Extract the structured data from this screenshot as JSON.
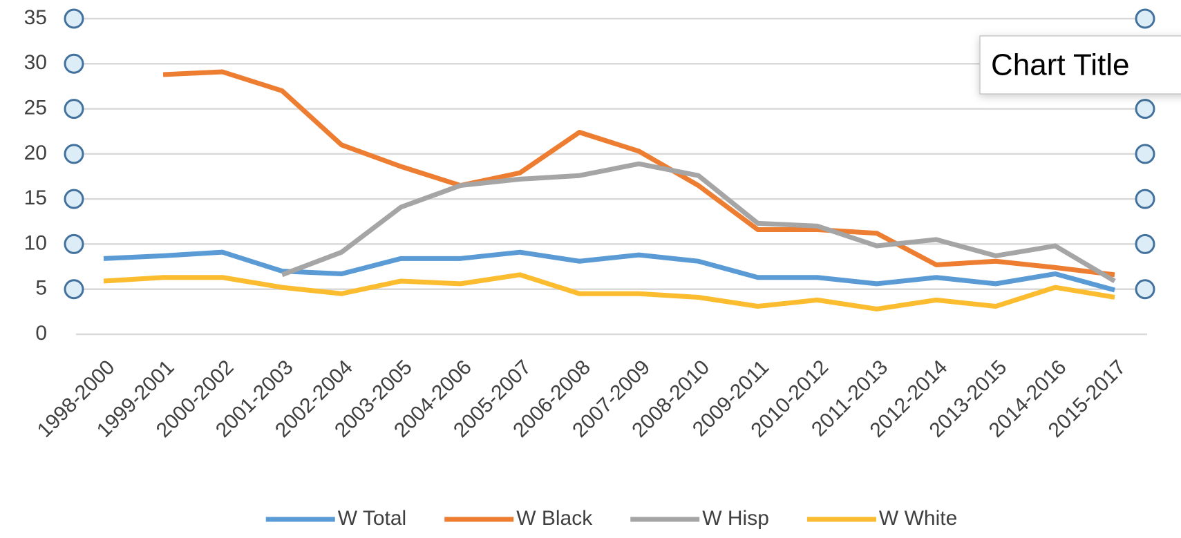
{
  "chart_data": {
    "type": "line",
    "title": "Chart Title",
    "categories": [
      "1998-2000",
      "1999-2001",
      "2000-2002",
      "2001-2003",
      "2002-2004",
      "2003-2005",
      "2004-2006",
      "2005-2007",
      "2006-2008",
      "2007-2009",
      "2008-2010",
      "2009-2011",
      "2010-2012",
      "2011-2013",
      "2012-2014",
      "2013-2015",
      "2014-2016",
      "2015-2017"
    ],
    "series": [
      {
        "name": "W Total",
        "color": "#5b9bd5",
        "values": [
          8.4,
          8.7,
          9.1,
          7.0,
          6.7,
          8.4,
          8.4,
          9.1,
          8.1,
          8.8,
          8.1,
          6.3,
          6.3,
          5.6,
          6.3,
          5.6,
          6.7,
          4.9
        ]
      },
      {
        "name": "W Black",
        "color": "#ed7d31",
        "values": [
          null,
          28.8,
          29.1,
          27.0,
          21.0,
          18.6,
          16.5,
          17.9,
          22.4,
          20.3,
          16.5,
          11.6,
          11.6,
          11.2,
          7.7,
          8.1,
          7.4,
          6.6
        ]
      },
      {
        "name": "W Hisp",
        "color": "#a5a5a5",
        "values": [
          null,
          null,
          null,
          6.6,
          9.1,
          14.1,
          16.5,
          17.2,
          17.6,
          18.9,
          17.6,
          12.3,
          12.0,
          9.8,
          10.5,
          8.7,
          9.8,
          5.9
        ]
      },
      {
        "name": "W White",
        "color": "#fbbc2f",
        "values": [
          5.9,
          6.3,
          6.3,
          5.2,
          4.5,
          5.9,
          5.6,
          6.6,
          4.5,
          4.5,
          4.1,
          3.1,
          3.8,
          2.8,
          3.8,
          3.1,
          5.2,
          4.1
        ]
      }
    ],
    "ylim": [
      0,
      35
    ],
    "yticks": [
      0,
      5,
      10,
      15,
      20,
      25,
      30,
      35
    ],
    "grid": true,
    "legend": "bottom"
  }
}
